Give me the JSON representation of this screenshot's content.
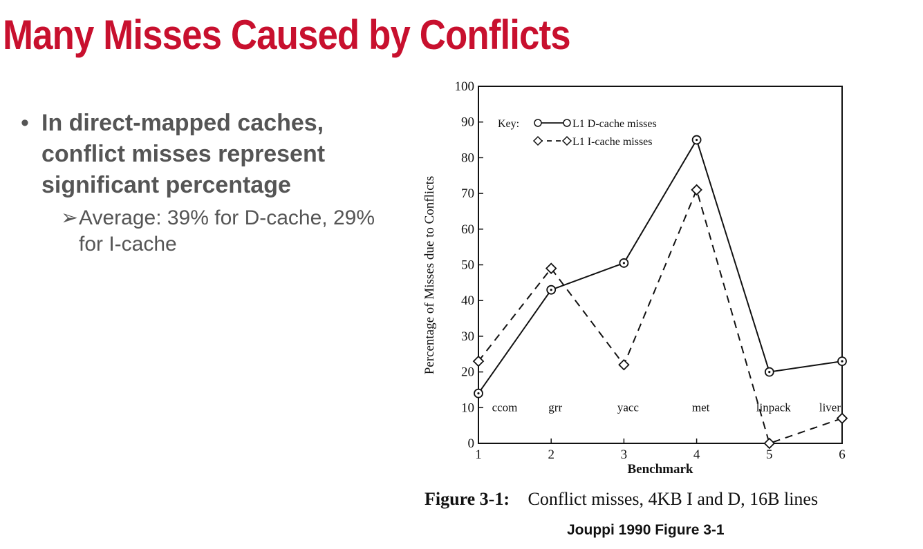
{
  "slide": {
    "title": "Many Misses Caused by Conflicts",
    "bullet_main": "In direct-mapped caches, conflict misses represent significant percentage",
    "bullet_sub": "Average: 39% for D-cache, 29% for I-cache",
    "figure_label": "Figure 3-1:",
    "figure_caption": "Conflict misses, 4KB I and D, 16B lines",
    "source": "Jouppi 1990 Figure 3-1",
    "colors": {
      "title": "#c8102e",
      "bullet_text": "#555555"
    }
  },
  "chart_data": {
    "type": "line",
    "xlabel": "Benchmark",
    "ylabel": "Percentage of Misses due to Conflicts",
    "x": [
      1,
      2,
      3,
      4,
      5,
      6
    ],
    "xlim": [
      1,
      6
    ],
    "ylim": [
      0,
      100
    ],
    "xticks": [
      "1",
      "2",
      "3",
      "4",
      "5",
      "6"
    ],
    "yticks": [
      "0",
      "10",
      "20",
      "30",
      "40",
      "50",
      "60",
      "70",
      "80",
      "90",
      "100"
    ],
    "categories": [
      "ccom",
      "grr",
      "yacc",
      "met",
      "linpack",
      "liver"
    ],
    "legend_title": "Key:",
    "legend_position": "top-left",
    "grid": false,
    "series": [
      {
        "name": "L1 D-cache misses",
        "values": [
          14,
          43,
          50.5,
          85,
          20,
          23
        ],
        "style": "solid",
        "marker": "circle"
      },
      {
        "name": "L1 I-cache misses",
        "values": [
          23,
          49,
          22,
          71,
          0,
          7
        ],
        "style": "dashed",
        "marker": "diamond"
      }
    ]
  }
}
